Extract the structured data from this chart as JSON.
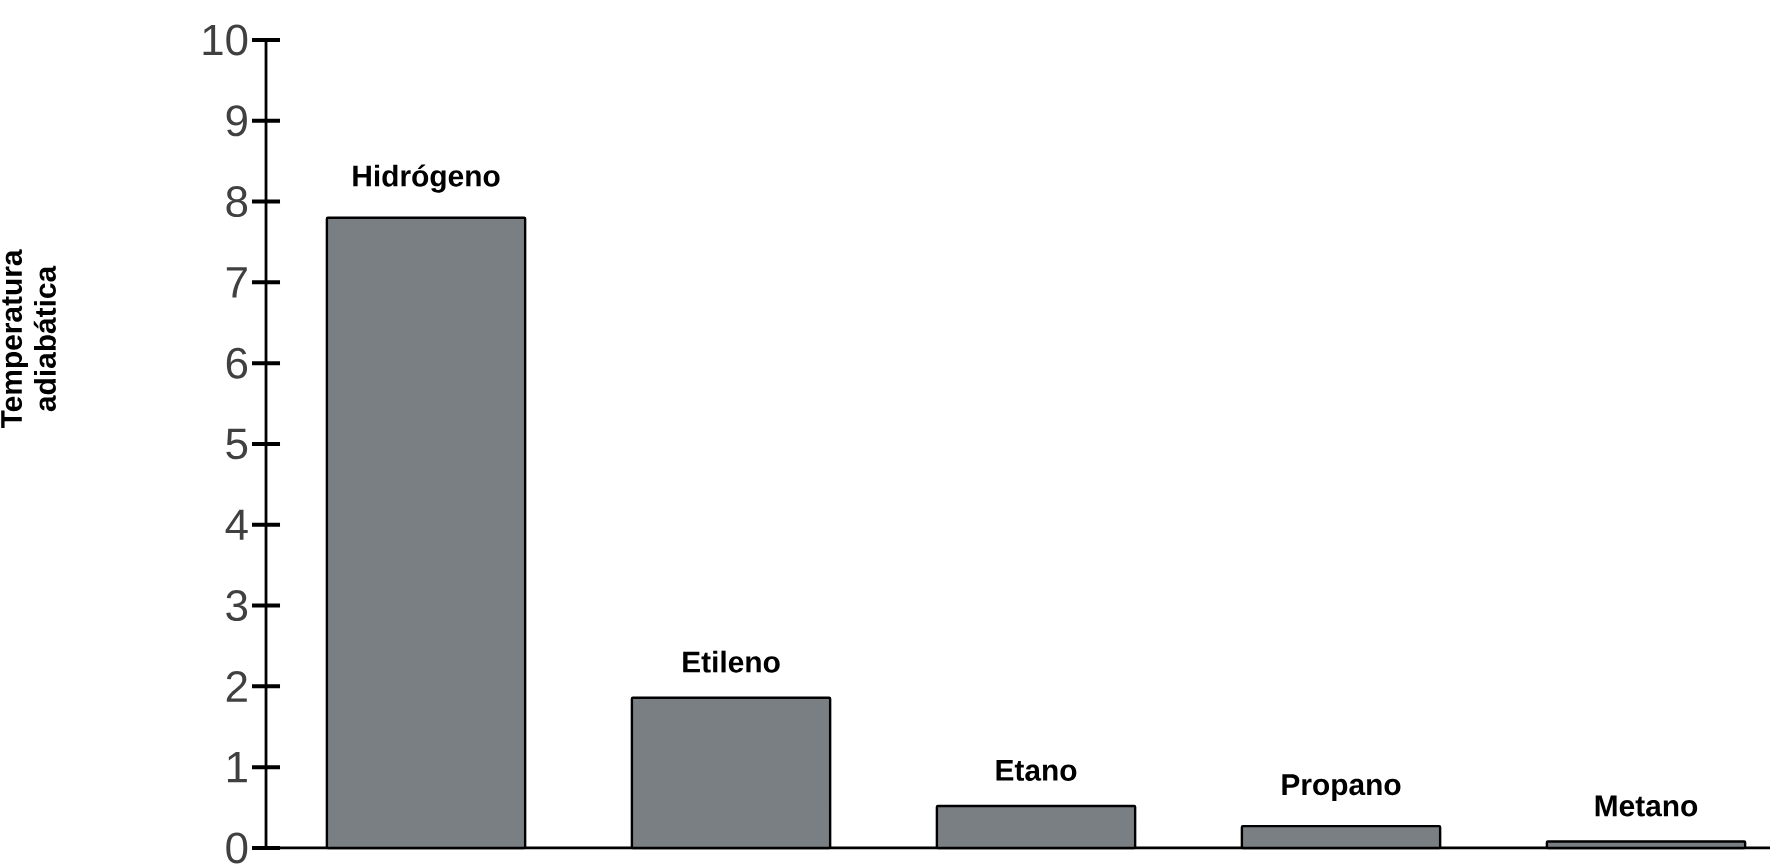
{
  "chart_data": {
    "type": "bar",
    "ylabel": "Temperatura adiabática",
    "categories": [
      "Hidrógeno",
      "Etileno",
      "Etano",
      "Propano",
      "Metano"
    ],
    "values": [
      7.8,
      1.86,
      0.52,
      0.27,
      0.08
    ],
    "color": "#7a7f84",
    "ylim": [
      0,
      10
    ],
    "yticks": [
      0,
      1,
      2,
      3,
      4,
      5,
      6,
      7,
      8,
      9,
      10
    ]
  }
}
